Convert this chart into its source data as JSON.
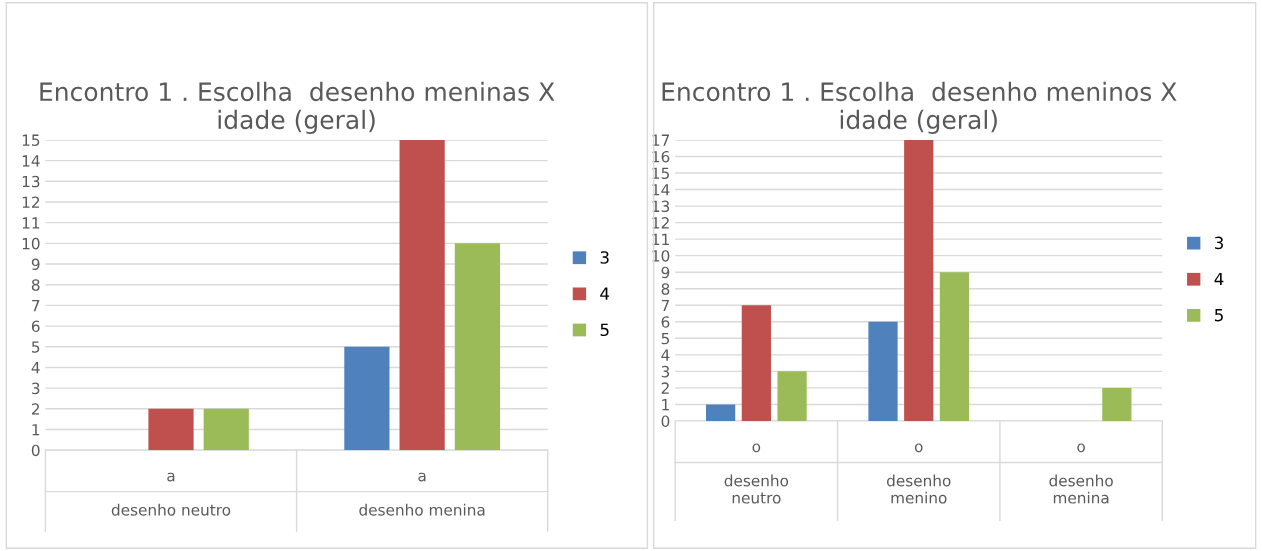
{
  "chart_data": [
    {
      "type": "bar",
      "title": "Encontro 1 . Escolha  desenho meninas X idade (geral)",
      "categories": [
        "a\n\ndesenho neutro",
        "a\n\ndesenho menina"
      ],
      "series": [
        {
          "name": "3",
          "color": "#4f81bd",
          "values": [
            0,
            5
          ]
        },
        {
          "name": "4",
          "color": "#c0504d",
          "values": [
            2,
            15
          ]
        },
        {
          "name": "5",
          "color": "#9bbb59",
          "values": [
            2,
            10
          ]
        }
      ],
      "ylim": [
        0,
        15
      ],
      "yticks": [
        0,
        1,
        2,
        3,
        4,
        5,
        6,
        7,
        8,
        9,
        10,
        11,
        12,
        13,
        14,
        15
      ],
      "grid": "y",
      "legend": "right"
    },
    {
      "type": "bar",
      "title": "Encontro 1 . Escolha  desenho meninos X idade (geral)",
      "categories": [
        "o\n\ndesenho\nneutro",
        "o\n\ndesenho\nmenino",
        "o\n\ndesenho\nmenina"
      ],
      "series": [
        {
          "name": "3",
          "color": "#4f81bd",
          "values": [
            1,
            6,
            0
          ]
        },
        {
          "name": "4",
          "color": "#c0504d",
          "values": [
            7,
            17,
            0
          ]
        },
        {
          "name": "5",
          "color": "#9bbb59",
          "values": [
            3,
            9,
            2
          ]
        }
      ],
      "ylim": [
        0,
        17
      ],
      "yticks": [
        0,
        1,
        2,
        3,
        4,
        5,
        6,
        7,
        8,
        9,
        10,
        11,
        12,
        13,
        14,
        15,
        16,
        17
      ],
      "grid": "y",
      "legend": "right"
    }
  ]
}
